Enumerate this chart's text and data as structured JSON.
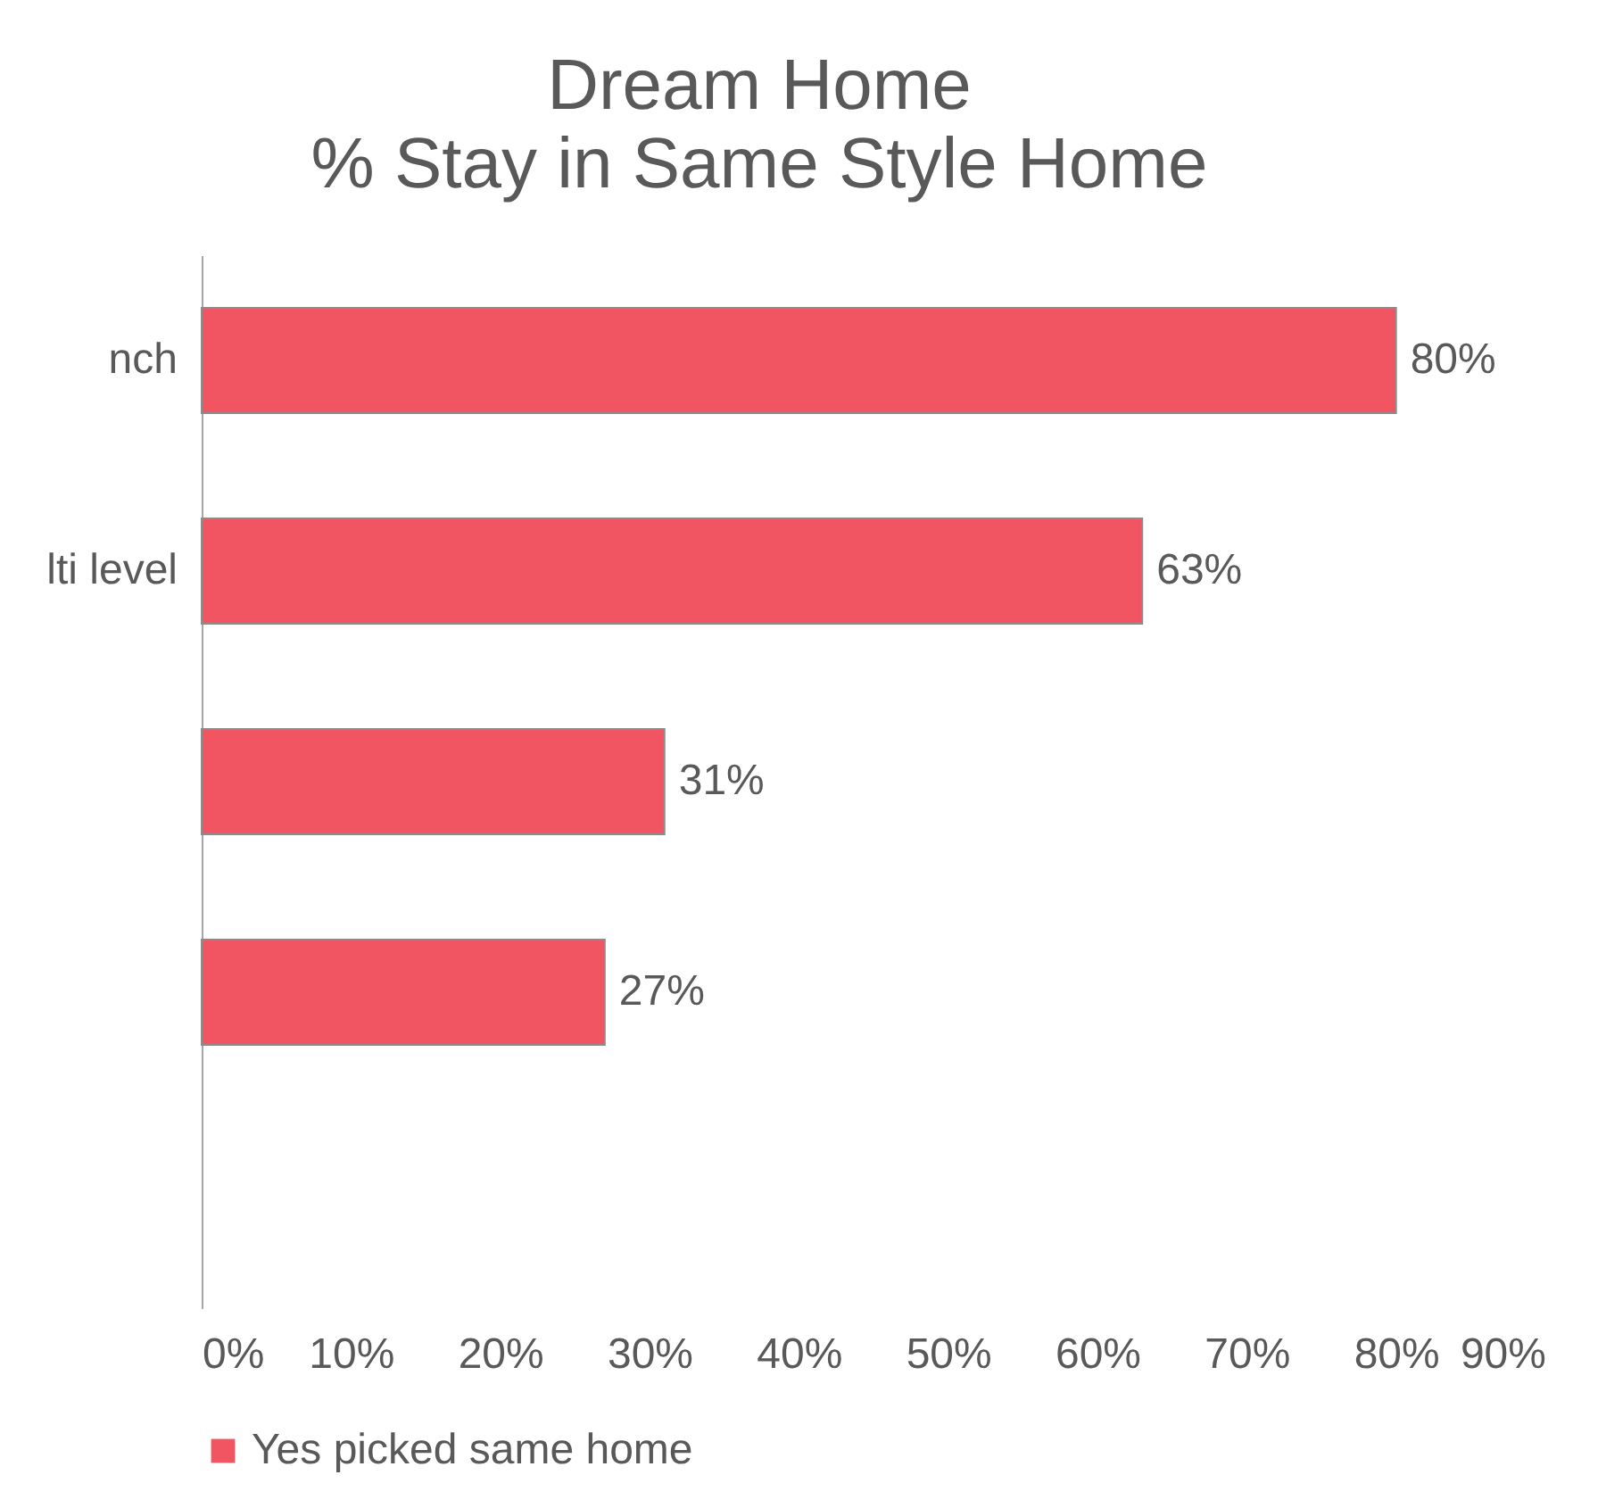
{
  "chart_data": {
    "type": "bar",
    "orientation": "horizontal",
    "title": "Dream Home",
    "subtitle": "% Stay in Same Style Home",
    "categories": [
      "nch",
      "lti level",
      null,
      null,
      null
    ],
    "series": [
      {
        "name": "Yes picked same home",
        "color": "#f25562",
        "values": [
          80,
          63,
          31,
          27,
          null
        ],
        "value_labels": [
          "80%",
          "63%",
          "31%",
          "27%",
          null
        ]
      }
    ],
    "xlim": [
      0,
      90
    ],
    "xticks": [
      {
        "value": 0,
        "label": "0%"
      },
      {
        "value": 10,
        "label": "10%"
      },
      {
        "value": 20,
        "label": "20%"
      },
      {
        "value": 30,
        "label": "30%"
      },
      {
        "value": 40,
        "label": "40%"
      },
      {
        "value": 50,
        "label": "50%"
      },
      {
        "value": 60,
        "label": "60%"
      },
      {
        "value": 70,
        "label": "70%"
      },
      {
        "value": 80,
        "label": "80%"
      },
      {
        "value": 90,
        "label": "90%"
      }
    ],
    "grid": false,
    "legend": "bottom"
  }
}
